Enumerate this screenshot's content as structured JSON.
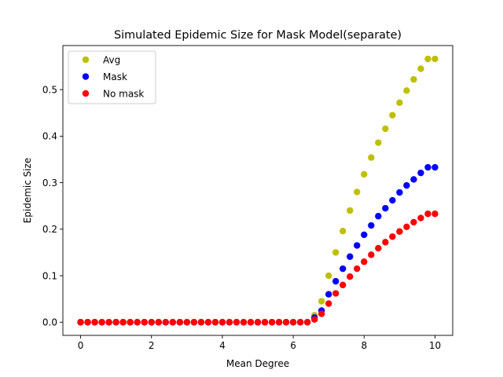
{
  "chart_data": {
    "type": "scatter",
    "title": "Simulated Epidemic Size for Mask Model(separate)",
    "xlabel": "Mean Degree",
    "ylabel": "Epidemic Size",
    "xlim": [
      -0.5,
      10.5
    ],
    "ylim": [
      -0.0283,
      0.5948
    ],
    "x_ticks": [
      0,
      2,
      4,
      6,
      8,
      10
    ],
    "y_ticks": [
      0.0,
      0.1,
      0.2,
      0.3,
      0.4,
      0.5
    ],
    "grid": false,
    "legend_position": "upper-left",
    "x": [
      0.0,
      0.2,
      0.4,
      0.6,
      0.8,
      1.0,
      1.2,
      1.4,
      1.6,
      1.8,
      2.0,
      2.2,
      2.4,
      2.6,
      2.8,
      3.0,
      3.2,
      3.4,
      3.6,
      3.8,
      4.0,
      4.2,
      4.4,
      4.6,
      4.8,
      5.0,
      5.2,
      5.4,
      5.6,
      5.8,
      6.0,
      6.2,
      6.4,
      6.6,
      6.8,
      7.0,
      7.2,
      7.4,
      7.6,
      7.8,
      8.0,
      8.2,
      8.4,
      8.6,
      8.8,
      9.0,
      9.2,
      9.4,
      9.6,
      9.8,
      10.0
    ],
    "series": [
      {
        "name": "Avg",
        "color": "#bfbf00",
        "values": [
          0,
          0,
          0,
          0,
          0,
          0,
          0,
          0,
          0,
          0,
          0,
          0,
          0,
          0,
          0,
          0,
          0,
          0,
          0,
          0,
          0,
          0,
          0,
          0,
          0,
          0,
          0,
          0,
          0,
          0,
          0,
          0,
          0,
          0.015,
          0.045,
          0.1,
          0.15,
          0.196,
          0.24,
          0.28,
          0.318,
          0.354,
          0.386,
          0.416,
          0.445,
          0.472,
          0.498,
          0.522,
          0.545,
          0.566,
          0.566
        ]
      },
      {
        "name": "Mask",
        "color": "#0000ff",
        "values": [
          0,
          0,
          0,
          0,
          0,
          0,
          0,
          0,
          0,
          0,
          0,
          0,
          0,
          0,
          0,
          0,
          0,
          0,
          0,
          0,
          0,
          0,
          0,
          0,
          0,
          0,
          0,
          0,
          0,
          0,
          0,
          0,
          0,
          0.01,
          0.025,
          0.06,
          0.088,
          0.115,
          0.141,
          0.165,
          0.188,
          0.208,
          0.228,
          0.245,
          0.262,
          0.279,
          0.294,
          0.307,
          0.321,
          0.333,
          0.333
        ]
      },
      {
        "name": "No mask",
        "color": "#ff0000",
        "values": [
          0,
          0,
          0,
          0,
          0,
          0,
          0,
          0,
          0,
          0,
          0,
          0,
          0,
          0,
          0,
          0,
          0,
          0,
          0,
          0,
          0,
          0,
          0,
          0,
          0,
          0,
          0,
          0,
          0,
          0,
          0,
          0,
          0,
          0.006,
          0.018,
          0.04,
          0.062,
          0.08,
          0.098,
          0.115,
          0.13,
          0.145,
          0.159,
          0.172,
          0.184,
          0.195,
          0.205,
          0.215,
          0.224,
          0.233,
          0.233
        ]
      }
    ]
  }
}
